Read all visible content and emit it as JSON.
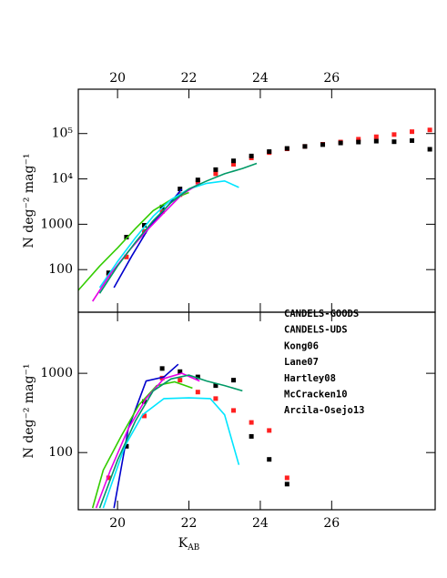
{
  "chart_data": [
    {
      "type": "line",
      "yscale": "log",
      "xlim": [
        18.9,
        28.9
      ],
      "ylim": [
        11.5,
        950000
      ],
      "xticks": [
        20,
        22,
        24,
        26
      ],
      "xtick_labels_position": "top",
      "yticks": [
        100,
        1000,
        {
          "value": 10000,
          "label": "10⁴"
        },
        {
          "value": 100000,
          "label": "10⁵"
        }
      ],
      "ylabel": "N deg⁻² mag⁻¹",
      "series": [
        {
          "style": "points",
          "color": "#ff2020",
          "x": [
            19.75,
            20.25,
            20.75,
            21.25,
            21.75,
            22.25,
            22.75,
            23.25,
            23.75,
            24.25,
            24.75,
            25.25,
            25.75,
            26.25,
            26.75,
            27.25,
            27.75,
            28.25,
            28.75
          ],
          "values": [
            75,
            190,
            700,
            1900,
            4500,
            8500,
            13000,
            21000,
            29000,
            38000,
            46000,
            52000,
            58000,
            65000,
            75000,
            85000,
            95000,
            110000,
            120000
          ]
        },
        {
          "style": "points",
          "color": "#000000",
          "x": [
            19.75,
            20.25,
            20.75,
            21.25,
            21.75,
            22.25,
            22.75,
            23.25,
            23.75,
            24.25,
            24.75,
            25.25,
            25.75,
            26.25,
            26.75,
            27.25,
            27.75,
            28.25,
            28.75
          ],
          "values": [
            85,
            520,
            950,
            2400,
            6000,
            9500,
            16000,
            25000,
            32000,
            40000,
            47000,
            52000,
            57000,
            62000,
            65000,
            68000,
            66000,
            70000,
            45000
          ]
        },
        {
          "style": "line",
          "color": "#0000cc",
          "x": [
            19.9,
            20.4,
            20.9,
            21.4,
            21.8
          ],
          "values": [
            40,
            200,
            900,
            2500,
            6000
          ]
        },
        {
          "style": "line",
          "color": "#33cc00",
          "x": [
            18.9,
            19.5,
            20,
            20.5,
            21,
            21.5,
            22
          ],
          "values": [
            35,
            120,
            300,
            800,
            2000,
            3500,
            5000
          ]
        },
        {
          "style": "line",
          "color": "#00e5ff",
          "x": [
            19.5,
            20,
            20.5,
            21,
            21.5,
            22,
            22.5,
            23,
            23.4
          ],
          "values": [
            40,
            150,
            500,
            1500,
            3500,
            6000,
            8000,
            9000,
            6500
          ]
        },
        {
          "style": "line",
          "color": "#e600e6",
          "x": [
            19.3,
            19.8,
            20.3,
            20.8,
            21.3,
            21.8,
            22.3
          ],
          "values": [
            20,
            80,
            250,
            700,
            1800,
            4500,
            8000
          ]
        },
        {
          "style": "line",
          "color": "#009966",
          "x": [
            19.5,
            20,
            20.5,
            21,
            21.5,
            22,
            22.5,
            23,
            23.5,
            23.9
          ],
          "values": [
            30,
            120,
            400,
            1200,
            3000,
            6000,
            9000,
            13000,
            17000,
            22000
          ]
        }
      ]
    },
    {
      "type": "line",
      "yscale": "log",
      "xlim": [
        18.9,
        28.9
      ],
      "ylim": [
        19,
        5900
      ],
      "xticks": [
        20,
        22,
        24,
        26
      ],
      "xtick_labels_position": "bottom",
      "yticks": [
        100,
        1000
      ],
      "ylabel": "N deg⁻² mag⁻¹",
      "xlabel": "K",
      "xlabel_subscript": "AB",
      "legend": "upper right",
      "series": [
        {
          "name": "CANDELS-GOODS",
          "style": "points",
          "color": "#ff2020",
          "x": [
            19.75,
            20.75,
            21.25,
            21.75,
            22.25,
            22.75,
            23.25,
            23.75,
            24.25,
            24.75
          ],
          "values": [
            48,
            290,
            870,
            820,
            580,
            480,
            340,
            240,
            190,
            48
          ]
        },
        {
          "name": "CANDELS-UDS",
          "style": "points",
          "color": "#000000",
          "x": [
            20.25,
            20.75,
            21.25,
            21.75,
            22.25,
            22.75,
            23.25,
            23.75,
            24.25,
            24.75
          ],
          "values": [
            120,
            440,
            1150,
            1050,
            900,
            700,
            820,
            160,
            82,
            40
          ]
        },
        {
          "name": "Kong06",
          "style": "line",
          "color": "#0000cc",
          "x": [
            19.9,
            20.3,
            20.8,
            21.3,
            21.7
          ],
          "values": [
            20,
            200,
            800,
            900,
            1300
          ]
        },
        {
          "name": "Lane07",
          "style": "line",
          "color": "#33cc00",
          "x": [
            19.3,
            19.6,
            20.1,
            20.6,
            21.1,
            21.6,
            22.1
          ],
          "values": [
            20,
            60,
            160,
            400,
            700,
            780,
            650
          ]
        },
        {
          "name": "Hartley08",
          "style": "line",
          "color": "#00e5ff",
          "x": [
            19.6,
            20.2,
            20.7,
            21.3,
            22,
            22.6,
            23,
            23.4
          ],
          "values": [
            20,
            120,
            300,
            480,
            490,
            480,
            300,
            70
          ]
        },
        {
          "name": "McCracken10",
          "style": "line",
          "color": "#e600e6",
          "x": [
            19.4,
            19.8,
            20.3,
            20.8,
            21.3,
            21.8,
            22.3
          ],
          "values": [
            20,
            60,
            200,
            480,
            860,
            1000,
            800
          ]
        },
        {
          "name": "Arcila-Osejo13",
          "style": "line",
          "color": "#009966",
          "x": [
            19.5,
            20,
            20.5,
            21,
            21.5,
            22,
            22.5,
            23,
            23.5
          ],
          "values": [
            20,
            80,
            250,
            600,
            850,
            950,
            800,
            700,
            600
          ]
        }
      ]
    }
  ]
}
